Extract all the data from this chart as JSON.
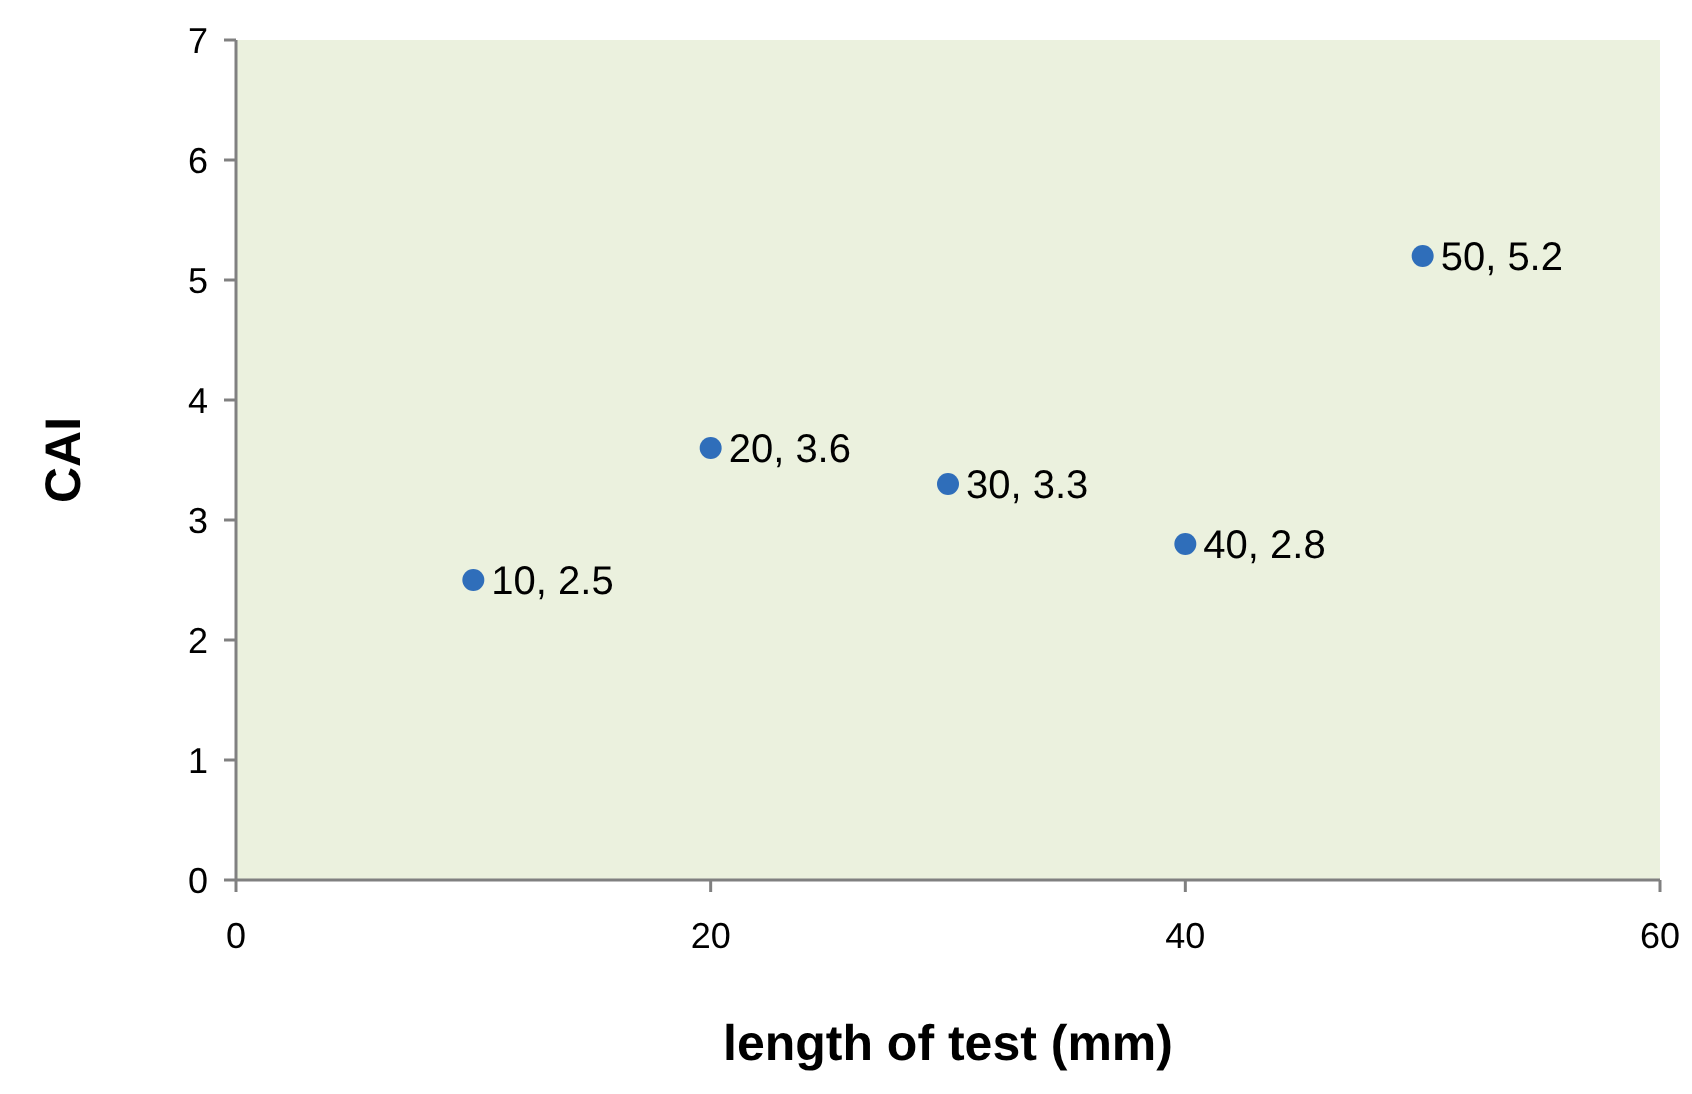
{
  "chart_data": {
    "type": "scatter",
    "xlabel": "length of test (mm)",
    "ylabel": "CAI",
    "x": [
      10,
      20,
      30,
      40,
      50
    ],
    "values": [
      2.5,
      3.6,
      3.3,
      2.8,
      5.2
    ],
    "value_labels": [
      "10, 2.5",
      "20, 3.6",
      "30, 3.3",
      "40, 2.8",
      "50, 5.2"
    ],
    "color": "#2f6eba",
    "marker": "circle",
    "xlim": [
      0,
      60
    ],
    "xticks": [
      0,
      20,
      40,
      60
    ],
    "ylim": [
      0,
      7
    ],
    "yticks": [
      0,
      1,
      2,
      3,
      4,
      5,
      6,
      7
    ]
  }
}
